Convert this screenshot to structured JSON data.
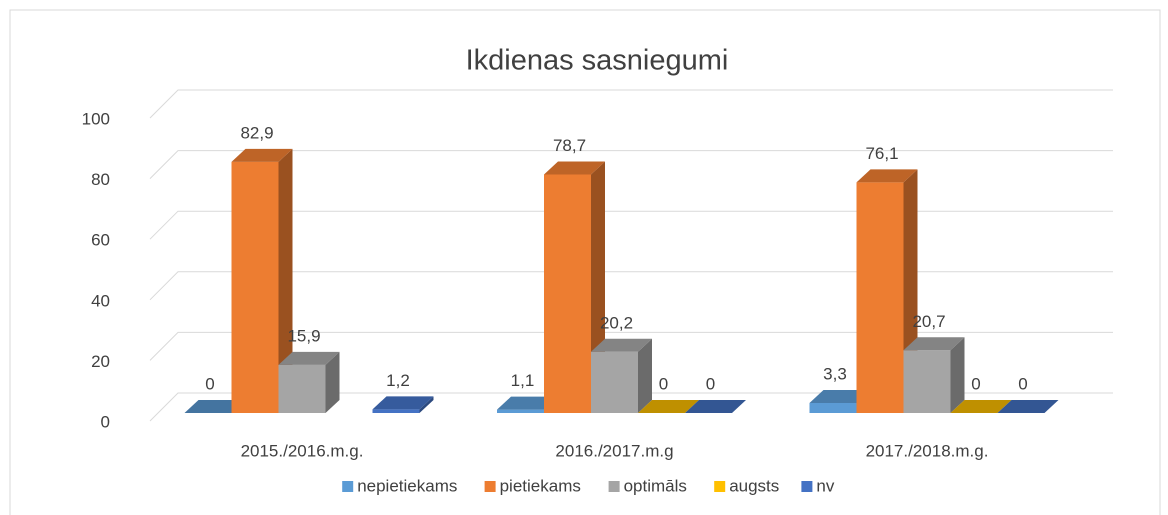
{
  "chart_data": {
    "type": "bar3d",
    "title": "Ikdienas sasniegumi",
    "categories": [
      "2015./2016.m.g.",
      "2016./2017.m.g",
      "2017./2018.m.g."
    ],
    "series": [
      {
        "name": "nepietiekams",
        "color": "#5b9bd5",
        "values": [
          0,
          1.1,
          3.3
        ],
        "value_labels": [
          "0",
          "1,1",
          "3,3"
        ]
      },
      {
        "name": "pietiekams",
        "color": "#ed7d31",
        "values": [
          82.9,
          78.7,
          76.1
        ],
        "value_labels": [
          "82,9",
          "78,7",
          "76,1"
        ]
      },
      {
        "name": "optimāls",
        "color": "#a5a5a5",
        "values": [
          15.9,
          20.2,
          20.7
        ],
        "value_labels": [
          "15,9",
          "20,2",
          "20,7"
        ]
      },
      {
        "name": "augsts",
        "color": "#ffc000",
        "values": [
          null,
          0,
          0
        ],
        "value_labels": [
          null,
          "0",
          "0"
        ]
      },
      {
        "name": "nv",
        "color": "#4472c4",
        "values": [
          1.2,
          0,
          0
        ],
        "value_labels": [
          "1,2",
          "0",
          "0"
        ]
      }
    ],
    "ylim": [
      0,
      100
    ],
    "yticks": [
      0,
      20,
      40,
      60,
      80,
      100
    ],
    "grid": true,
    "legend": "bottom"
  }
}
